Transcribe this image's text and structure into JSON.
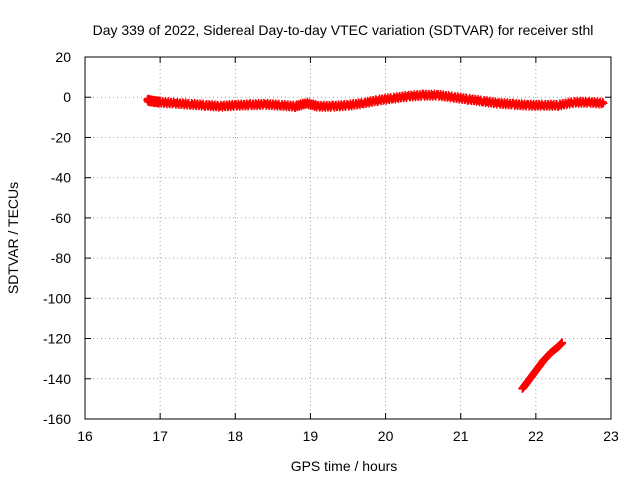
{
  "chart_data": {
    "type": "scatter",
    "title": "Day 339 of 2022, Sidereal Day-to-day VTEC variation (SDTVAR) for receiver sthl",
    "xlabel": "GPS time / hours",
    "ylabel": "SDTVAR / TECUs",
    "xlim": [
      16,
      23
    ],
    "ylim": [
      -160,
      20
    ],
    "xticks": [
      16,
      17,
      18,
      19,
      20,
      21,
      22,
      23
    ],
    "yticks": [
      20,
      0,
      -20,
      -40,
      -60,
      -80,
      -100,
      -120,
      -140,
      -160
    ],
    "grid": true,
    "marker": "plus",
    "color": "#ff0000",
    "series": [
      {
        "x": [
          16.83,
          16.9,
          17.0,
          17.2,
          17.4,
          17.6,
          17.8,
          18.0,
          18.2,
          18.4,
          18.6,
          18.8,
          18.95,
          19.1,
          19.3,
          19.5,
          19.7,
          19.9,
          20.1,
          20.3,
          20.5,
          20.7,
          20.9,
          21.1,
          21.3,
          21.5,
          21.7,
          21.9,
          22.1,
          22.3,
          22.5,
          22.7,
          22.9
        ],
        "y": [
          -1.5,
          -2,
          -2.5,
          -3,
          -3.5,
          -4,
          -4.5,
          -4,
          -3.8,
          -3.5,
          -4,
          -4.5,
          -3,
          -4.5,
          -4.5,
          -4,
          -3,
          -1.5,
          -0.5,
          0.5,
          1,
          1,
          0,
          -1,
          -2,
          -3,
          -3.5,
          -4,
          -4,
          -4,
          -2.5,
          -2.5,
          -3
        ]
      },
      {
        "x": [
          21.82,
          21.9,
          22.0,
          22.1,
          22.2,
          22.3,
          22.35
        ],
        "y": [
          -145,
          -141,
          -136,
          -131,
          -127,
          -124,
          -122
        ]
      }
    ]
  }
}
